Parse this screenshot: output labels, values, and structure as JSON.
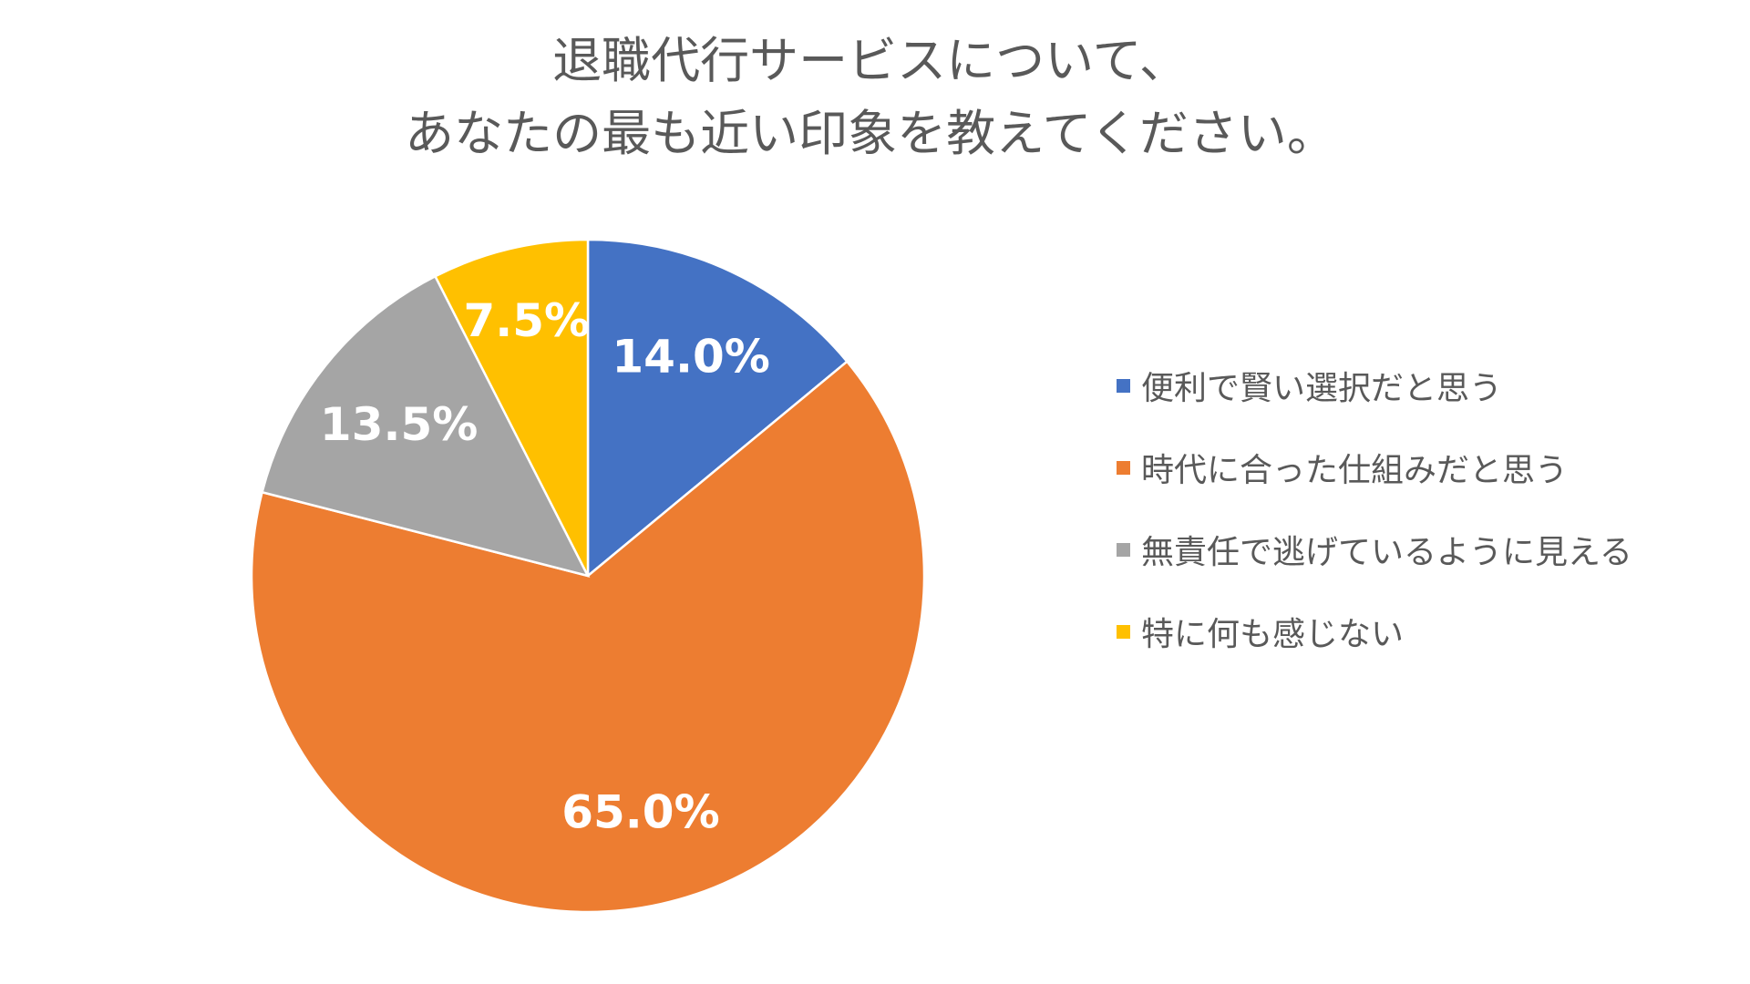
{
  "chart_data": {
    "type": "pie",
    "title": [
      "退職代行サービスについて、",
      "あなたの最も近い印象を教えてください。"
    ],
    "categories": [
      "便利で賢い選択だと思う",
      "時代に合った仕組みだと思う",
      "無責任で逃げているように見える",
      "特に何も感じない"
    ],
    "values": [
      14.0,
      65.0,
      13.5,
      7.5
    ],
    "labels": [
      "14.0%",
      "65.0%",
      "13.5%",
      "7.5%"
    ],
    "colors": [
      "#4472C4",
      "#ED7D31",
      "#A5A5A5",
      "#FFC000"
    ],
    "legend_position": "right"
  }
}
